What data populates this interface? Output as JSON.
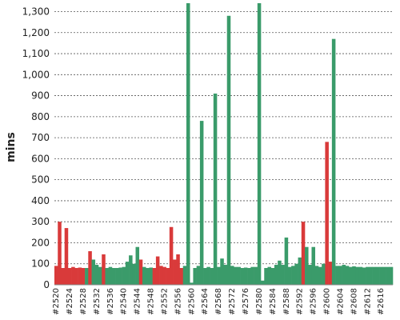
{
  "chart_data": {
    "type": "bar",
    "ylabel": "mins",
    "xlabel": "",
    "ylim": [
      0,
      1340
    ],
    "yticks": [
      0,
      100,
      200,
      300,
      400,
      500,
      600,
      700,
      800,
      900,
      1000,
      1100,
      1200,
      1300
    ],
    "ytick_labels": [
      "0",
      "100",
      "200",
      "300",
      "400",
      "500",
      "600",
      "700",
      "800",
      "900",
      "1,000",
      "1,100",
      "1,200",
      "1,300"
    ],
    "xtick_labels": [
      "#2520",
      "#2524",
      "#2528",
      "#2532",
      "#2536",
      "#2540",
      "#2544",
      "#2548",
      "#2552",
      "#2556",
      "#2560",
      "#2564",
      "#2568",
      "#2572",
      "#2576",
      "#2580",
      "#2584",
      "#2588",
      "#2592",
      "#2596",
      "#2600",
      "#2604",
      "#2608",
      "#2612",
      "#2616"
    ],
    "grid": true,
    "colors": {
      "success": "#3a9b6a",
      "failure": "#d93a3a"
    },
    "builds": [
      {
        "id": 2520,
        "value": 90,
        "status": "failure"
      },
      {
        "id": 2521,
        "value": 300,
        "status": "failure"
      },
      {
        "id": 2522,
        "value": 80,
        "status": "failure"
      },
      {
        "id": 2523,
        "value": 270,
        "status": "failure"
      },
      {
        "id": 2524,
        "value": 80,
        "status": "failure"
      },
      {
        "id": 2525,
        "value": 85,
        "status": "failure"
      },
      {
        "id": 2526,
        "value": 80,
        "status": "failure"
      },
      {
        "id": 2527,
        "value": 82,
        "status": "failure"
      },
      {
        "id": 2528,
        "value": 80,
        "status": "failure"
      },
      {
        "id": 2529,
        "value": 80,
        "status": "success"
      },
      {
        "id": 2530,
        "value": 160,
        "status": "failure"
      },
      {
        "id": 2531,
        "value": 120,
        "status": "success"
      },
      {
        "id": 2532,
        "value": 95,
        "status": "success"
      },
      {
        "id": 2533,
        "value": 85,
        "status": "success"
      },
      {
        "id": 2534,
        "value": 145,
        "status": "failure"
      },
      {
        "id": 2535,
        "value": 80,
        "status": "success"
      },
      {
        "id": 2536,
        "value": 85,
        "status": "success"
      },
      {
        "id": 2537,
        "value": 80,
        "status": "success"
      },
      {
        "id": 2538,
        "value": 80,
        "status": "success"
      },
      {
        "id": 2539,
        "value": 82,
        "status": "success"
      },
      {
        "id": 2540,
        "value": 85,
        "status": "success"
      },
      {
        "id": 2541,
        "value": 110,
        "status": "success"
      },
      {
        "id": 2542,
        "value": 140,
        "status": "success"
      },
      {
        "id": 2543,
        "value": 100,
        "status": "success"
      },
      {
        "id": 2544,
        "value": 180,
        "status": "success"
      },
      {
        "id": 2545,
        "value": 120,
        "status": "failure"
      },
      {
        "id": 2546,
        "value": 85,
        "status": "success"
      },
      {
        "id": 2547,
        "value": 80,
        "status": "success"
      },
      {
        "id": 2548,
        "value": 82,
        "status": "success"
      },
      {
        "id": 2549,
        "value": 80,
        "status": "failure"
      },
      {
        "id": 2550,
        "value": 135,
        "status": "failure"
      },
      {
        "id": 2551,
        "value": 90,
        "status": "failure"
      },
      {
        "id": 2552,
        "value": 85,
        "status": "failure"
      },
      {
        "id": 2553,
        "value": 80,
        "status": "failure"
      },
      {
        "id": 2554,
        "value": 275,
        "status": "failure"
      },
      {
        "id": 2555,
        "value": 120,
        "status": "failure"
      },
      {
        "id": 2556,
        "value": 145,
        "status": "failure"
      },
      {
        "id": 2557,
        "value": 80,
        "status": "failure"
      },
      {
        "id": 2558,
        "value": 90,
        "status": "success"
      },
      {
        "id": 2559,
        "value": 1340,
        "status": "success"
      },
      {
        "id": 2560,
        "value": 10,
        "status": "success"
      },
      {
        "id": 2561,
        "value": 80,
        "status": "success"
      },
      {
        "id": 2562,
        "value": 90,
        "status": "success"
      },
      {
        "id": 2563,
        "value": 780,
        "status": "success"
      },
      {
        "id": 2564,
        "value": 80,
        "status": "success"
      },
      {
        "id": 2565,
        "value": 85,
        "status": "success"
      },
      {
        "id": 2566,
        "value": 80,
        "status": "success"
      },
      {
        "id": 2567,
        "value": 910,
        "status": "success"
      },
      {
        "id": 2568,
        "value": 85,
        "status": "success"
      },
      {
        "id": 2569,
        "value": 125,
        "status": "success"
      },
      {
        "id": 2570,
        "value": 95,
        "status": "success"
      },
      {
        "id": 2571,
        "value": 1280,
        "status": "success"
      },
      {
        "id": 2572,
        "value": 90,
        "status": "success"
      },
      {
        "id": 2573,
        "value": 85,
        "status": "success"
      },
      {
        "id": 2574,
        "value": 85,
        "status": "success"
      },
      {
        "id": 2575,
        "value": 80,
        "status": "success"
      },
      {
        "id": 2576,
        "value": 82,
        "status": "success"
      },
      {
        "id": 2577,
        "value": 80,
        "status": "success"
      },
      {
        "id": 2578,
        "value": 85,
        "status": "success"
      },
      {
        "id": 2579,
        "value": 85,
        "status": "success"
      },
      {
        "id": 2580,
        "value": 1340,
        "status": "success"
      },
      {
        "id": 2581,
        "value": 20,
        "status": "success"
      },
      {
        "id": 2582,
        "value": 80,
        "status": "success"
      },
      {
        "id": 2583,
        "value": 85,
        "status": "success"
      },
      {
        "id": 2584,
        "value": 80,
        "status": "success"
      },
      {
        "id": 2585,
        "value": 95,
        "status": "success"
      },
      {
        "id": 2586,
        "value": 115,
        "status": "success"
      },
      {
        "id": 2587,
        "value": 95,
        "status": "success"
      },
      {
        "id": 2588,
        "value": 225,
        "status": "success"
      },
      {
        "id": 2589,
        "value": 85,
        "status": "success"
      },
      {
        "id": 2590,
        "value": 90,
        "status": "success"
      },
      {
        "id": 2591,
        "value": 100,
        "status": "success"
      },
      {
        "id": 2592,
        "value": 130,
        "status": "success"
      },
      {
        "id": 2593,
        "value": 300,
        "status": "failure"
      },
      {
        "id": 2594,
        "value": 180,
        "status": "success"
      },
      {
        "id": 2595,
        "value": 95,
        "status": "success"
      },
      {
        "id": 2596,
        "value": 180,
        "status": "success"
      },
      {
        "id": 2597,
        "value": 90,
        "status": "success"
      },
      {
        "id": 2598,
        "value": 85,
        "status": "success"
      },
      {
        "id": 2599,
        "value": 100,
        "status": "success"
      },
      {
        "id": 2600,
        "value": 680,
        "status": "failure"
      },
      {
        "id": 2601,
        "value": 110,
        "status": "failure"
      },
      {
        "id": 2602,
        "value": 1170,
        "status": "success"
      },
      {
        "id": 2603,
        "value": 90,
        "status": "success"
      },
      {
        "id": 2604,
        "value": 90,
        "status": "success"
      },
      {
        "id": 2605,
        "value": 95,
        "status": "success"
      },
      {
        "id": 2606,
        "value": 90,
        "status": "success"
      },
      {
        "id": 2607,
        "value": 85,
        "status": "success"
      },
      {
        "id": 2608,
        "value": 88,
        "status": "success"
      },
      {
        "id": 2609,
        "value": 85,
        "status": "success"
      },
      {
        "id": 2610,
        "value": 85,
        "status": "success"
      },
      {
        "id": 2611,
        "value": 82,
        "status": "success"
      },
      {
        "id": 2612,
        "value": 85,
        "status": "success"
      },
      {
        "id": 2613,
        "value": 85,
        "status": "success"
      },
      {
        "id": 2614,
        "value": 85,
        "status": "success"
      },
      {
        "id": 2615,
        "value": 85,
        "status": "success"
      },
      {
        "id": 2616,
        "value": 85,
        "status": "success"
      },
      {
        "id": 2617,
        "value": 85,
        "status": "success"
      },
      {
        "id": 2618,
        "value": 85,
        "status": "success"
      },
      {
        "id": 2619,
        "value": 85,
        "status": "success"
      }
    ]
  }
}
